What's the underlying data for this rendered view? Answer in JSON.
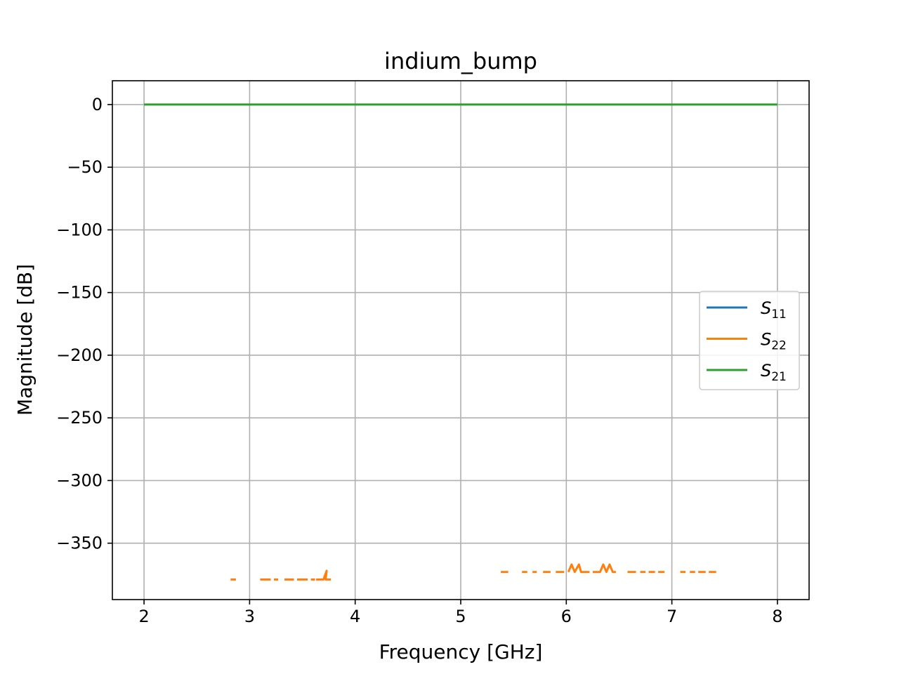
{
  "chart_data": {
    "type": "line",
    "title": "indium_bump",
    "xlabel": "Frequency [GHz]",
    "ylabel": "Magnitude [dB]",
    "xlim": [
      1.7,
      8.3
    ],
    "ylim": [
      -395,
      19
    ],
    "xticks": [
      2,
      3,
      4,
      5,
      6,
      7,
      8
    ],
    "yticks": [
      0,
      -50,
      -100,
      -150,
      -200,
      -250,
      -300,
      -350
    ],
    "xtick_labels": [
      "2",
      "3",
      "4",
      "5",
      "6",
      "7",
      "8"
    ],
    "ytick_labels": [
      "0",
      "−50",
      "−100",
      "−150",
      "−200",
      "−250",
      "−300",
      "−350"
    ],
    "grid": true,
    "legend_position": "center-right",
    "series": [
      {
        "name": "S11",
        "label_main": "S",
        "label_sub": "11",
        "color": "#1f77b4",
        "segments": []
      },
      {
        "name": "S22",
        "label_main": "S",
        "label_sub": "22",
        "color": "#ff7f0e",
        "segments": [
          [
            [
              2.82,
              -379
            ],
            [
              2.87,
              -379
            ]
          ],
          [
            [
              3.1,
              -379
            ],
            [
              3.2,
              -379
            ]
          ],
          [
            [
              3.23,
              -379
            ],
            [
              3.27,
              -379
            ]
          ],
          [
            [
              3.33,
              -379
            ],
            [
              3.42,
              -379
            ]
          ],
          [
            [
              3.45,
              -379
            ],
            [
              3.55,
              -379
            ]
          ],
          [
            [
              3.58,
              -379
            ],
            [
              3.62,
              -379
            ]
          ],
          [
            [
              3.63,
              -379
            ],
            [
              3.7,
              -379
            ],
            [
              3.73,
              -372
            ],
            [
              3.72,
              -379
            ],
            [
              3.77,
              -379
            ]
          ],
          [
            [
              5.38,
              -373
            ],
            [
              5.45,
              -373
            ]
          ],
          [
            [
              5.58,
              -373
            ],
            [
              5.63,
              -373
            ]
          ],
          [
            [
              5.68,
              -373
            ],
            [
              5.72,
              -373
            ]
          ],
          [
            [
              5.78,
              -373
            ],
            [
              5.85,
              -373
            ]
          ],
          [
            [
              5.9,
              -373
            ],
            [
              5.98,
              -373
            ]
          ],
          [
            [
              6.02,
              -373
            ],
            [
              6.05,
              -367
            ],
            [
              6.08,
              -373
            ],
            [
              6.12,
              -367
            ],
            [
              6.14,
              -373
            ],
            [
              6.22,
              -373
            ]
          ],
          [
            [
              6.25,
              -373
            ],
            [
              6.32,
              -373
            ],
            [
              6.35,
              -367
            ],
            [
              6.38,
              -373
            ],
            [
              6.41,
              -367
            ],
            [
              6.44,
              -373
            ],
            [
              6.47,
              -373
            ]
          ],
          [
            [
              6.58,
              -373
            ],
            [
              6.66,
              -373
            ]
          ],
          [
            [
              6.7,
              -373
            ],
            [
              6.75,
              -373
            ]
          ],
          [
            [
              6.78,
              -373
            ],
            [
              6.84,
              -373
            ]
          ],
          [
            [
              6.87,
              -373
            ],
            [
              6.93,
              -373
            ]
          ],
          [
            [
              7.08,
              -373
            ],
            [
              7.13,
              -373
            ]
          ],
          [
            [
              7.17,
              -373
            ],
            [
              7.22,
              -373
            ]
          ],
          [
            [
              7.25,
              -373
            ],
            [
              7.32,
              -373
            ]
          ],
          [
            [
              7.35,
              -373
            ],
            [
              7.42,
              -373
            ]
          ]
        ]
      },
      {
        "name": "S21",
        "label_main": "S",
        "label_sub": "21",
        "color": "#2ca02c",
        "segments": [
          [
            [
              2.0,
              0
            ],
            [
              8.0,
              0
            ]
          ]
        ]
      }
    ]
  }
}
